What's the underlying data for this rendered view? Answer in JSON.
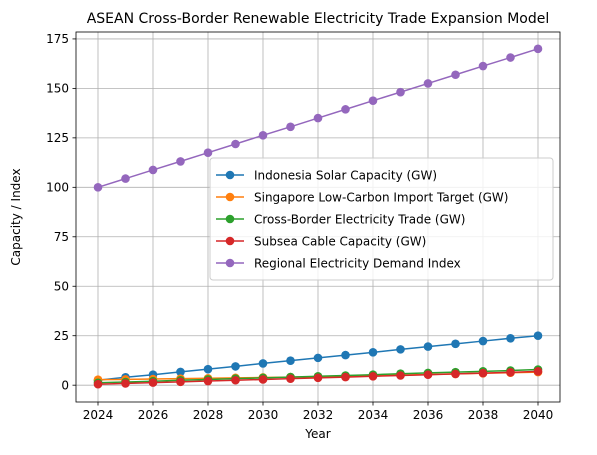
{
  "chart_data": {
    "type": "line",
    "title": "ASEAN Cross-Border Renewable Electricity Trade Expansion Model",
    "xlabel": "Year",
    "ylabel": "Capacity / Index",
    "xlim": [
      2023.2,
      2040.8
    ],
    "ylim": [
      -8.5,
      178.5
    ],
    "x_ticks": [
      2024,
      2026,
      2028,
      2030,
      2032,
      2034,
      2036,
      2038,
      2040
    ],
    "y_ticks": [
      0,
      25,
      50,
      75,
      100,
      125,
      150,
      175
    ],
    "grid": true,
    "legend_placement": "center-right",
    "x": [
      2024,
      2025,
      2026,
      2027,
      2028,
      2029,
      2030,
      2031,
      2032,
      2033,
      2034,
      2035,
      2036,
      2037,
      2038,
      2039,
      2040
    ],
    "series": [
      {
        "name": "Indonesia Solar Capacity (GW)",
        "color": "#1f77b4",
        "values": [
          2.5,
          4.0,
          5.3,
          6.7,
          8.1,
          9.5,
          11.0,
          12.4,
          13.8,
          15.2,
          16.6,
          18.1,
          19.5,
          20.9,
          22.3,
          23.7,
          25.0
        ]
      },
      {
        "name": "Singapore Low-Carbon Import Target (GW)",
        "color": "#ff7f0e",
        "values": [
          2.8,
          2.9,
          3.1,
          3.3,
          3.5,
          3.7,
          3.9,
          4.1,
          4.3,
          4.6,
          4.8,
          5.1,
          5.4,
          5.7,
          6.0,
          6.3,
          6.6
        ]
      },
      {
        "name": "Cross-Border Electricity Trade (GW)",
        "color": "#2ca02c",
        "values": [
          1.2,
          1.6,
          2.0,
          2.5,
          2.9,
          3.3,
          3.7,
          4.1,
          4.5,
          4.9,
          5.3,
          5.8,
          6.2,
          6.6,
          7.0,
          7.4,
          7.9
        ]
      },
      {
        "name": "Subsea Cable Capacity (GW)",
        "color": "#d62728",
        "values": [
          0.5,
          0.9,
          1.3,
          1.7,
          2.1,
          2.5,
          2.9,
          3.3,
          3.7,
          4.1,
          4.5,
          4.9,
          5.3,
          5.7,
          6.1,
          6.5,
          7.0
        ]
      },
      {
        "name": "Regional Electricity Demand Index",
        "color": "#9467bd",
        "values": [
          100.0,
          104.4,
          108.8,
          113.1,
          117.5,
          121.9,
          126.3,
          130.6,
          135.0,
          139.4,
          143.8,
          148.1,
          152.5,
          156.9,
          161.3,
          165.6,
          170.0
        ]
      }
    ]
  }
}
